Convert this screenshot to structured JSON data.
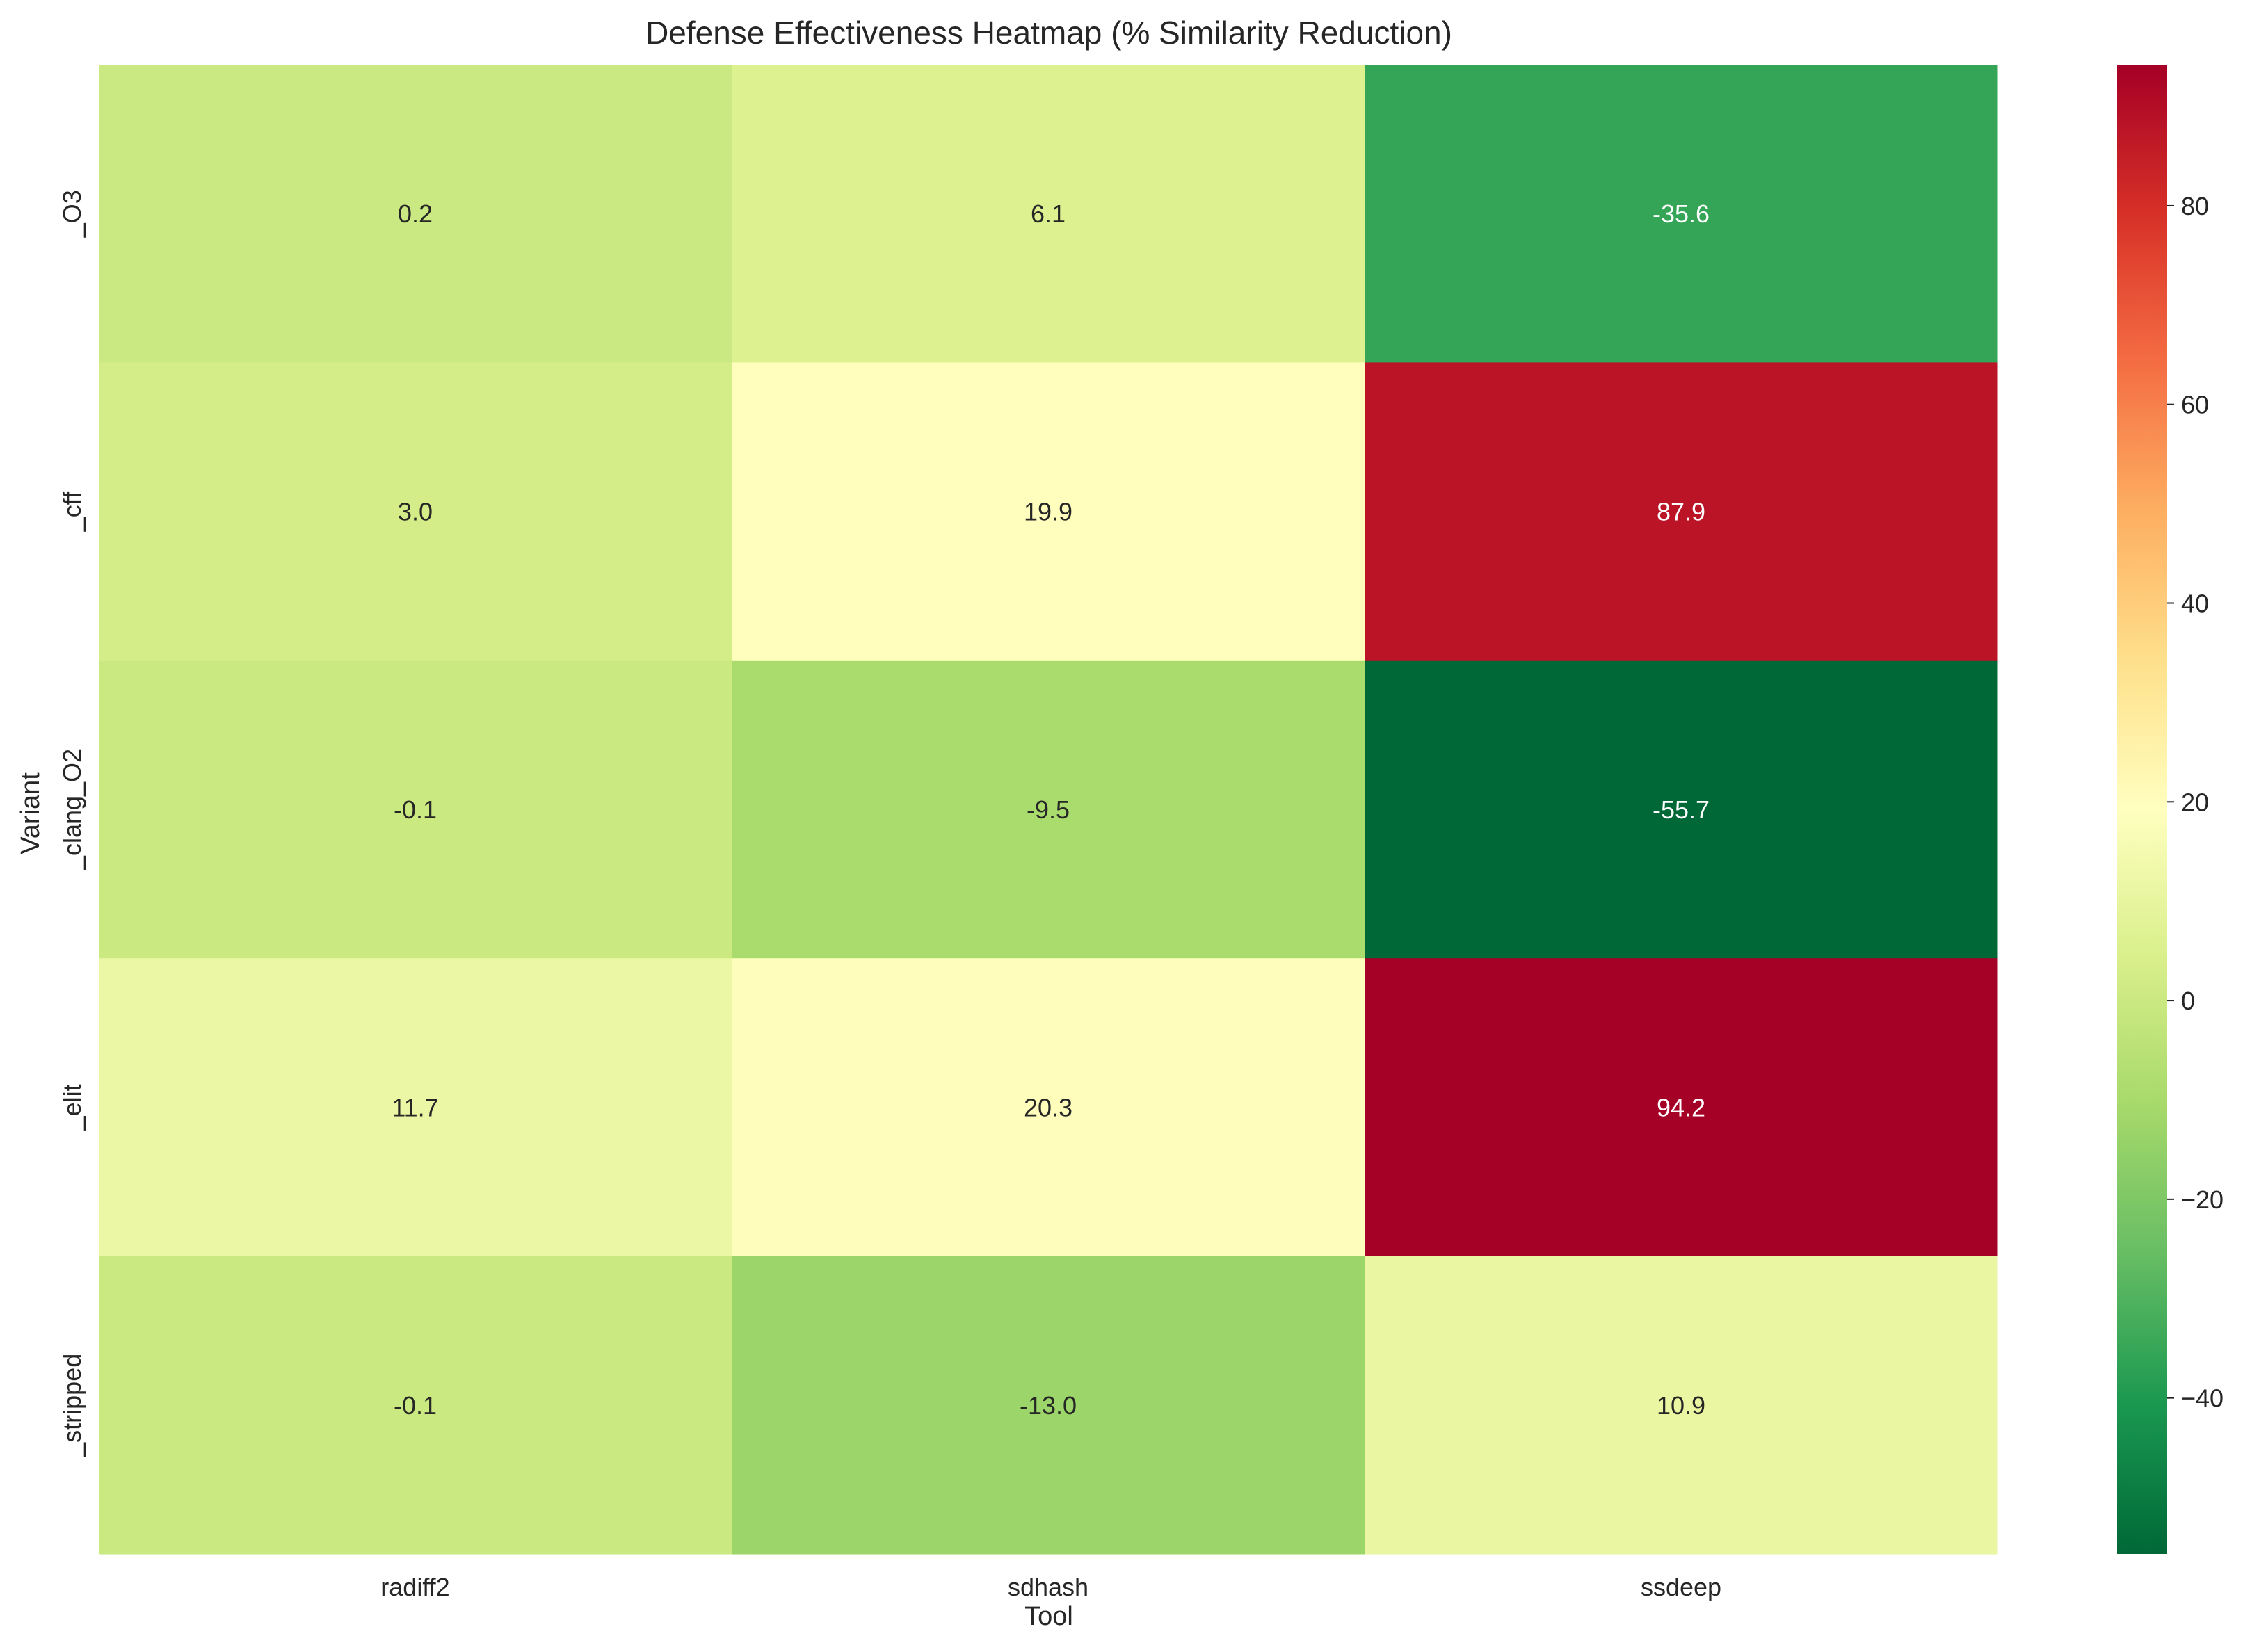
{
  "chart_data": {
    "type": "heatmap",
    "title": "Defense Effectiveness Heatmap (% Similarity Reduction)",
    "xlabel": "Tool",
    "ylabel": "Variant",
    "x_categories": [
      "radiff2",
      "sdhash",
      "ssdeep"
    ],
    "y_categories": [
      "_O3",
      "_cff",
      "_clang_O2",
      "_elit",
      "_stripped"
    ],
    "values": [
      [
        0.2,
        6.1,
        -35.6
      ],
      [
        3.0,
        19.9,
        87.9
      ],
      [
        -0.1,
        -9.5,
        -55.7
      ],
      [
        11.7,
        20.3,
        94.2
      ],
      [
        -0.1,
        -13.0,
        10.9
      ]
    ],
    "value_labels": [
      [
        "0.2",
        "6.1",
        "-35.6"
      ],
      [
        "3.0",
        "19.9",
        "87.9"
      ],
      [
        "-0.1",
        "-9.5",
        "-55.7"
      ],
      [
        "11.7",
        "20.3",
        "94.2"
      ],
      [
        "-0.1",
        "-13.0",
        "10.9"
      ]
    ],
    "colormap": "RdYlGn_r",
    "color_range": [
      -55.7,
      94.2
    ],
    "colorbar_ticks": [
      80,
      60,
      40,
      20,
      0,
      -20,
      -40
    ],
    "colorbar_tick_labels": [
      "80",
      "60",
      "40",
      "20",
      "0",
      "−20",
      "−40"
    ],
    "colorbar_position": "right",
    "grid": false
  }
}
